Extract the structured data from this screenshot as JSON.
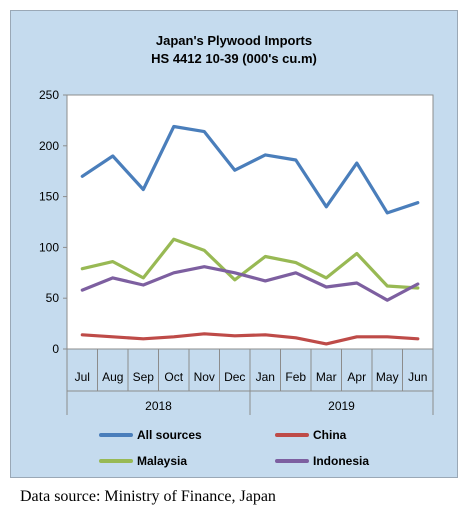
{
  "chart_data": {
    "type": "line",
    "title": "Japan's Plywood Imports",
    "subtitle": "HS 4412 10-39 (000's cu.m)",
    "categories": [
      "Jul",
      "Aug",
      "Sep",
      "Oct",
      "Nov",
      "Dec",
      "Jan",
      "Feb",
      "Mar",
      "Apr",
      "May",
      "Jun"
    ],
    "year_groups": [
      {
        "label": "2018",
        "span": 6
      },
      {
        "label": "2019",
        "span": 6
      }
    ],
    "ylim": [
      0,
      250
    ],
    "yticks": [
      0,
      50,
      100,
      150,
      200,
      250
    ],
    "grid": false,
    "legend_position": "bottom",
    "series": [
      {
        "name": "All sources",
        "color": "#4a7ebb",
        "values": [
          170,
          190,
          157,
          219,
          214,
          176,
          191,
          186,
          140,
          183,
          134,
          144
        ]
      },
      {
        "name": "China",
        "color": "#be4b48",
        "values": [
          14,
          12,
          10,
          12,
          15,
          13,
          14,
          11,
          5,
          12,
          12,
          10
        ]
      },
      {
        "name": "Malaysia",
        "color": "#98b954",
        "values": [
          79,
          86,
          70,
          108,
          97,
          68,
          91,
          85,
          70,
          94,
          62,
          60
        ]
      },
      {
        "name": "Indonesia",
        "color": "#7d5fa0",
        "values": [
          58,
          70,
          63,
          75,
          81,
          75,
          67,
          75,
          61,
          65,
          48,
          64
        ]
      }
    ]
  },
  "source_note": "Data source: Ministry of Finance, Japan"
}
